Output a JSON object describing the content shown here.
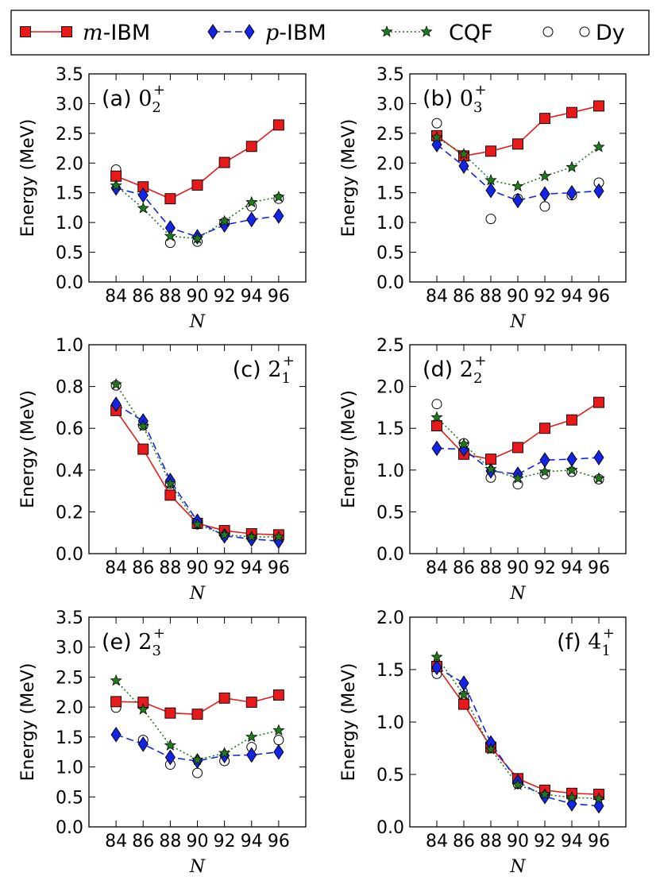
{
  "legend": {
    "placement": "top",
    "entries": [
      {
        "key": "mibm",
        "italic": "m",
        "text": "-IBM",
        "color": "#e8191a",
        "marker": "square",
        "line": "solid"
      },
      {
        "key": "pibm",
        "italic": "p",
        "text": "-IBM",
        "color": "#1324e6",
        "marker": "diamond",
        "line": "dashed"
      },
      {
        "key": "cqf",
        "italic": "",
        "text": "CQF",
        "color": "#1f7a1a",
        "marker": "star",
        "line": "dotted"
      },
      {
        "key": "dy",
        "italic": "",
        "text": "Dy",
        "color": "#000000",
        "marker": "circle",
        "line": "none"
      }
    ]
  },
  "chart_data": [
    {
      "id": "a",
      "type": "line",
      "label": "(a)",
      "level": "0",
      "sub": "2",
      "sup": "+",
      "label_pos": "top-left",
      "xlabel": "N",
      "ylabel": "Energy (MeV)",
      "x": [
        84,
        86,
        88,
        90,
        92,
        94,
        96
      ],
      "xlim": [
        82,
        98
      ],
      "ylim": [
        0.0,
        3.5
      ],
      "yticks": [
        "0.0",
        "0.5",
        "1.0",
        "1.5",
        "2.0",
        "2.5",
        "3.0",
        "3.5"
      ],
      "series": [
        {
          "name": "m-IBM",
          "values": [
            1.78,
            1.6,
            1.4,
            1.63,
            2.01,
            2.28,
            2.64
          ]
        },
        {
          "name": "p-IBM",
          "values": [
            1.58,
            1.46,
            0.91,
            0.76,
            0.96,
            1.05,
            1.11
          ]
        },
        {
          "name": "CQF",
          "values": [
            1.62,
            1.24,
            0.77,
            0.73,
            1.02,
            1.34,
            1.43
          ]
        },
        {
          "name": "Dy",
          "values": [
            1.89,
            null,
            0.66,
            0.68,
            1.0,
            1.27,
            1.4
          ]
        }
      ]
    },
    {
      "id": "b",
      "type": "line",
      "label": "(b)",
      "level": "0",
      "sub": "3",
      "sup": "+",
      "label_pos": "top-left",
      "xlabel": "N",
      "ylabel": "Energy (MeV)",
      "x": [
        84,
        86,
        88,
        90,
        92,
        94,
        96
      ],
      "xlim": [
        82,
        98
      ],
      "ylim": [
        0.0,
        3.5
      ],
      "yticks": [
        "0.0",
        "0.5",
        "1.0",
        "1.5",
        "2.0",
        "2.5",
        "3.0",
        "3.5"
      ],
      "series": [
        {
          "name": "m-IBM",
          "values": [
            2.46,
            2.12,
            2.2,
            2.32,
            2.75,
            2.85,
            2.96
          ]
        },
        {
          "name": "p-IBM",
          "values": [
            2.31,
            1.95,
            1.54,
            1.37,
            1.48,
            1.5,
            1.53
          ]
        },
        {
          "name": "CQF",
          "values": [
            2.43,
            2.15,
            1.71,
            1.61,
            1.78,
            1.93,
            2.27
          ]
        },
        {
          "name": "Dy",
          "values": [
            2.67,
            2.13,
            1.06,
            1.4,
            1.27,
            1.46,
            1.67
          ]
        }
      ]
    },
    {
      "id": "c",
      "type": "line",
      "label": "(c)",
      "level": "2",
      "sub": "1",
      "sup": "+",
      "label_pos": "top-right",
      "xlabel": "N",
      "ylabel": "Energy (MeV)",
      "x": [
        84,
        86,
        88,
        90,
        92,
        94,
        96
      ],
      "xlim": [
        82,
        98
      ],
      "ylim": [
        0.0,
        1.0
      ],
      "yticks": [
        "0.0",
        "0.2",
        "0.4",
        "0.6",
        "0.8",
        "1.0"
      ],
      "series": [
        {
          "name": "m-IBM",
          "values": [
            0.685,
            0.5,
            0.28,
            0.145,
            0.11,
            0.095,
            0.09
          ]
        },
        {
          "name": "p-IBM",
          "values": [
            0.715,
            0.635,
            0.35,
            0.155,
            0.085,
            0.07,
            0.06
          ]
        },
        {
          "name": "CQF",
          "values": [
            0.81,
            0.61,
            0.335,
            0.14,
            0.09,
            0.08,
            0.08
          ]
        },
        {
          "name": "Dy",
          "values": [
            0.805,
            0.615,
            0.335,
            0.14,
            0.1,
            0.09,
            0.08
          ]
        }
      ]
    },
    {
      "id": "d",
      "type": "line",
      "label": "(d)",
      "level": "2",
      "sub": "2",
      "sup": "+",
      "label_pos": "top-left",
      "xlabel": "N",
      "ylabel": "Energy (MeV)",
      "x": [
        84,
        86,
        88,
        90,
        92,
        94,
        96
      ],
      "xlim": [
        82,
        98
      ],
      "ylim": [
        0.0,
        2.5
      ],
      "yticks": [
        "0.0",
        "0.5",
        "1.0",
        "1.5",
        "2.0",
        "2.5"
      ],
      "series": [
        {
          "name": "m-IBM",
          "values": [
            1.53,
            1.19,
            1.13,
            1.27,
            1.5,
            1.6,
            1.81
          ]
        },
        {
          "name": "p-IBM",
          "values": [
            1.26,
            1.25,
            0.99,
            0.95,
            1.12,
            1.13,
            1.15
          ]
        },
        {
          "name": "CQF",
          "values": [
            1.63,
            1.31,
            1.01,
            0.9,
            0.98,
            1.0,
            0.9
          ]
        },
        {
          "name": "Dy",
          "values": [
            1.79,
            1.32,
            0.91,
            0.83,
            0.95,
            0.98,
            0.89
          ]
        }
      ]
    },
    {
      "id": "e",
      "type": "line",
      "label": "(e)",
      "level": "2",
      "sub": "3",
      "sup": "+",
      "label_pos": "top-left",
      "xlabel": "N",
      "ylabel": "Energy (MeV)",
      "x": [
        84,
        86,
        88,
        90,
        92,
        94,
        96
      ],
      "xlim": [
        82,
        98
      ],
      "ylim": [
        0.0,
        3.5
      ],
      "yticks": [
        "0.0",
        "0.5",
        "1.0",
        "1.5",
        "2.0",
        "2.5",
        "3.0",
        "3.5"
      ],
      "series": [
        {
          "name": "m-IBM",
          "values": [
            2.09,
            2.08,
            1.9,
            1.88,
            2.15,
            2.08,
            2.2
          ]
        },
        {
          "name": "p-IBM",
          "values": [
            1.54,
            1.38,
            1.16,
            1.1,
            1.19,
            1.2,
            1.25
          ]
        },
        {
          "name": "CQF",
          "values": [
            2.44,
            1.96,
            1.36,
            1.12,
            1.23,
            1.5,
            1.61
          ]
        },
        {
          "name": "Dy",
          "values": [
            1.99,
            1.45,
            1.04,
            0.9,
            1.1,
            1.33,
            1.45
          ]
        }
      ]
    },
    {
      "id": "f",
      "type": "line",
      "label": "(f)",
      "level": "4",
      "sub": "1",
      "sup": "+",
      "label_pos": "top-right",
      "xlabel": "N",
      "ylabel": "Energy (MeV)",
      "x": [
        84,
        86,
        88,
        90,
        92,
        94,
        96
      ],
      "xlim": [
        82,
        98
      ],
      "ylim": [
        0.0,
        2.0
      ],
      "yticks": [
        "0.0",
        "0.5",
        "1.0",
        "1.5",
        "2.0"
      ],
      "series": [
        {
          "name": "m-IBM",
          "values": [
            1.53,
            1.17,
            0.76,
            0.46,
            0.35,
            0.32,
            0.31
          ]
        },
        {
          "name": "p-IBM",
          "values": [
            1.52,
            1.37,
            0.8,
            0.43,
            0.29,
            0.22,
            0.2
          ]
        },
        {
          "name": "CQF",
          "values": [
            1.62,
            1.26,
            0.74,
            0.4,
            0.31,
            0.28,
            0.27
          ]
        },
        {
          "name": "Dy",
          "values": [
            1.46,
            1.25,
            0.75,
            0.41,
            0.33,
            0.29,
            0.29
          ]
        }
      ]
    }
  ]
}
